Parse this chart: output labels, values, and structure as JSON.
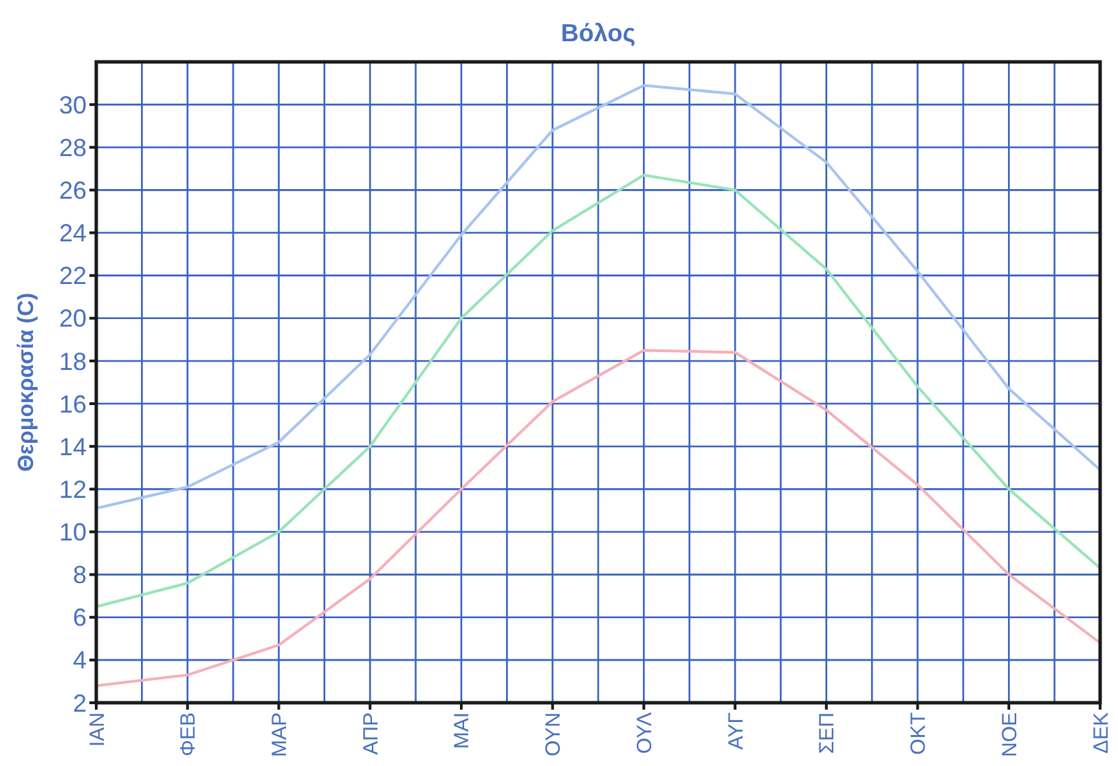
{
  "chart_data": {
    "type": "line",
    "title": "Βόλος",
    "ylabel": "Θερμοκρασία (C)",
    "categories": [
      "ΙΑΝ",
      "ΦΕΒ",
      "ΜΑΡ",
      "ΑΠΡ",
      "ΜΑΙ",
      "ΟΥΝ",
      "ΟΥΛ",
      "ΑΥΓ",
      "ΣΕΠ",
      "ΟΚΤ",
      "ΝΟΕ",
      "ΔΕΚ"
    ],
    "series": [
      {
        "color": "#a8c4f0",
        "values": [
          11.1,
          12.1,
          14.2,
          18.3,
          23.9,
          28.8,
          30.9,
          30.5,
          27.3,
          22.2,
          16.7,
          12.9
        ]
      },
      {
        "color": "#98e4b8",
        "values": [
          6.5,
          7.6,
          10.0,
          14.0,
          20.0,
          24.1,
          26.7,
          26.0,
          22.3,
          16.8,
          12.0,
          8.3
        ]
      },
      {
        "color": "#f5b0b8",
        "values": [
          2.8,
          3.3,
          4.7,
          7.8,
          12.0,
          16.1,
          18.5,
          18.4,
          15.7,
          12.2,
          8.0,
          4.8
        ]
      }
    ],
    "ylim": [
      2,
      32
    ],
    "yticks": [
      2,
      4,
      6,
      8,
      10,
      12,
      14,
      16,
      18,
      20,
      22,
      24,
      26,
      28,
      30
    ],
    "grid": true
  }
}
